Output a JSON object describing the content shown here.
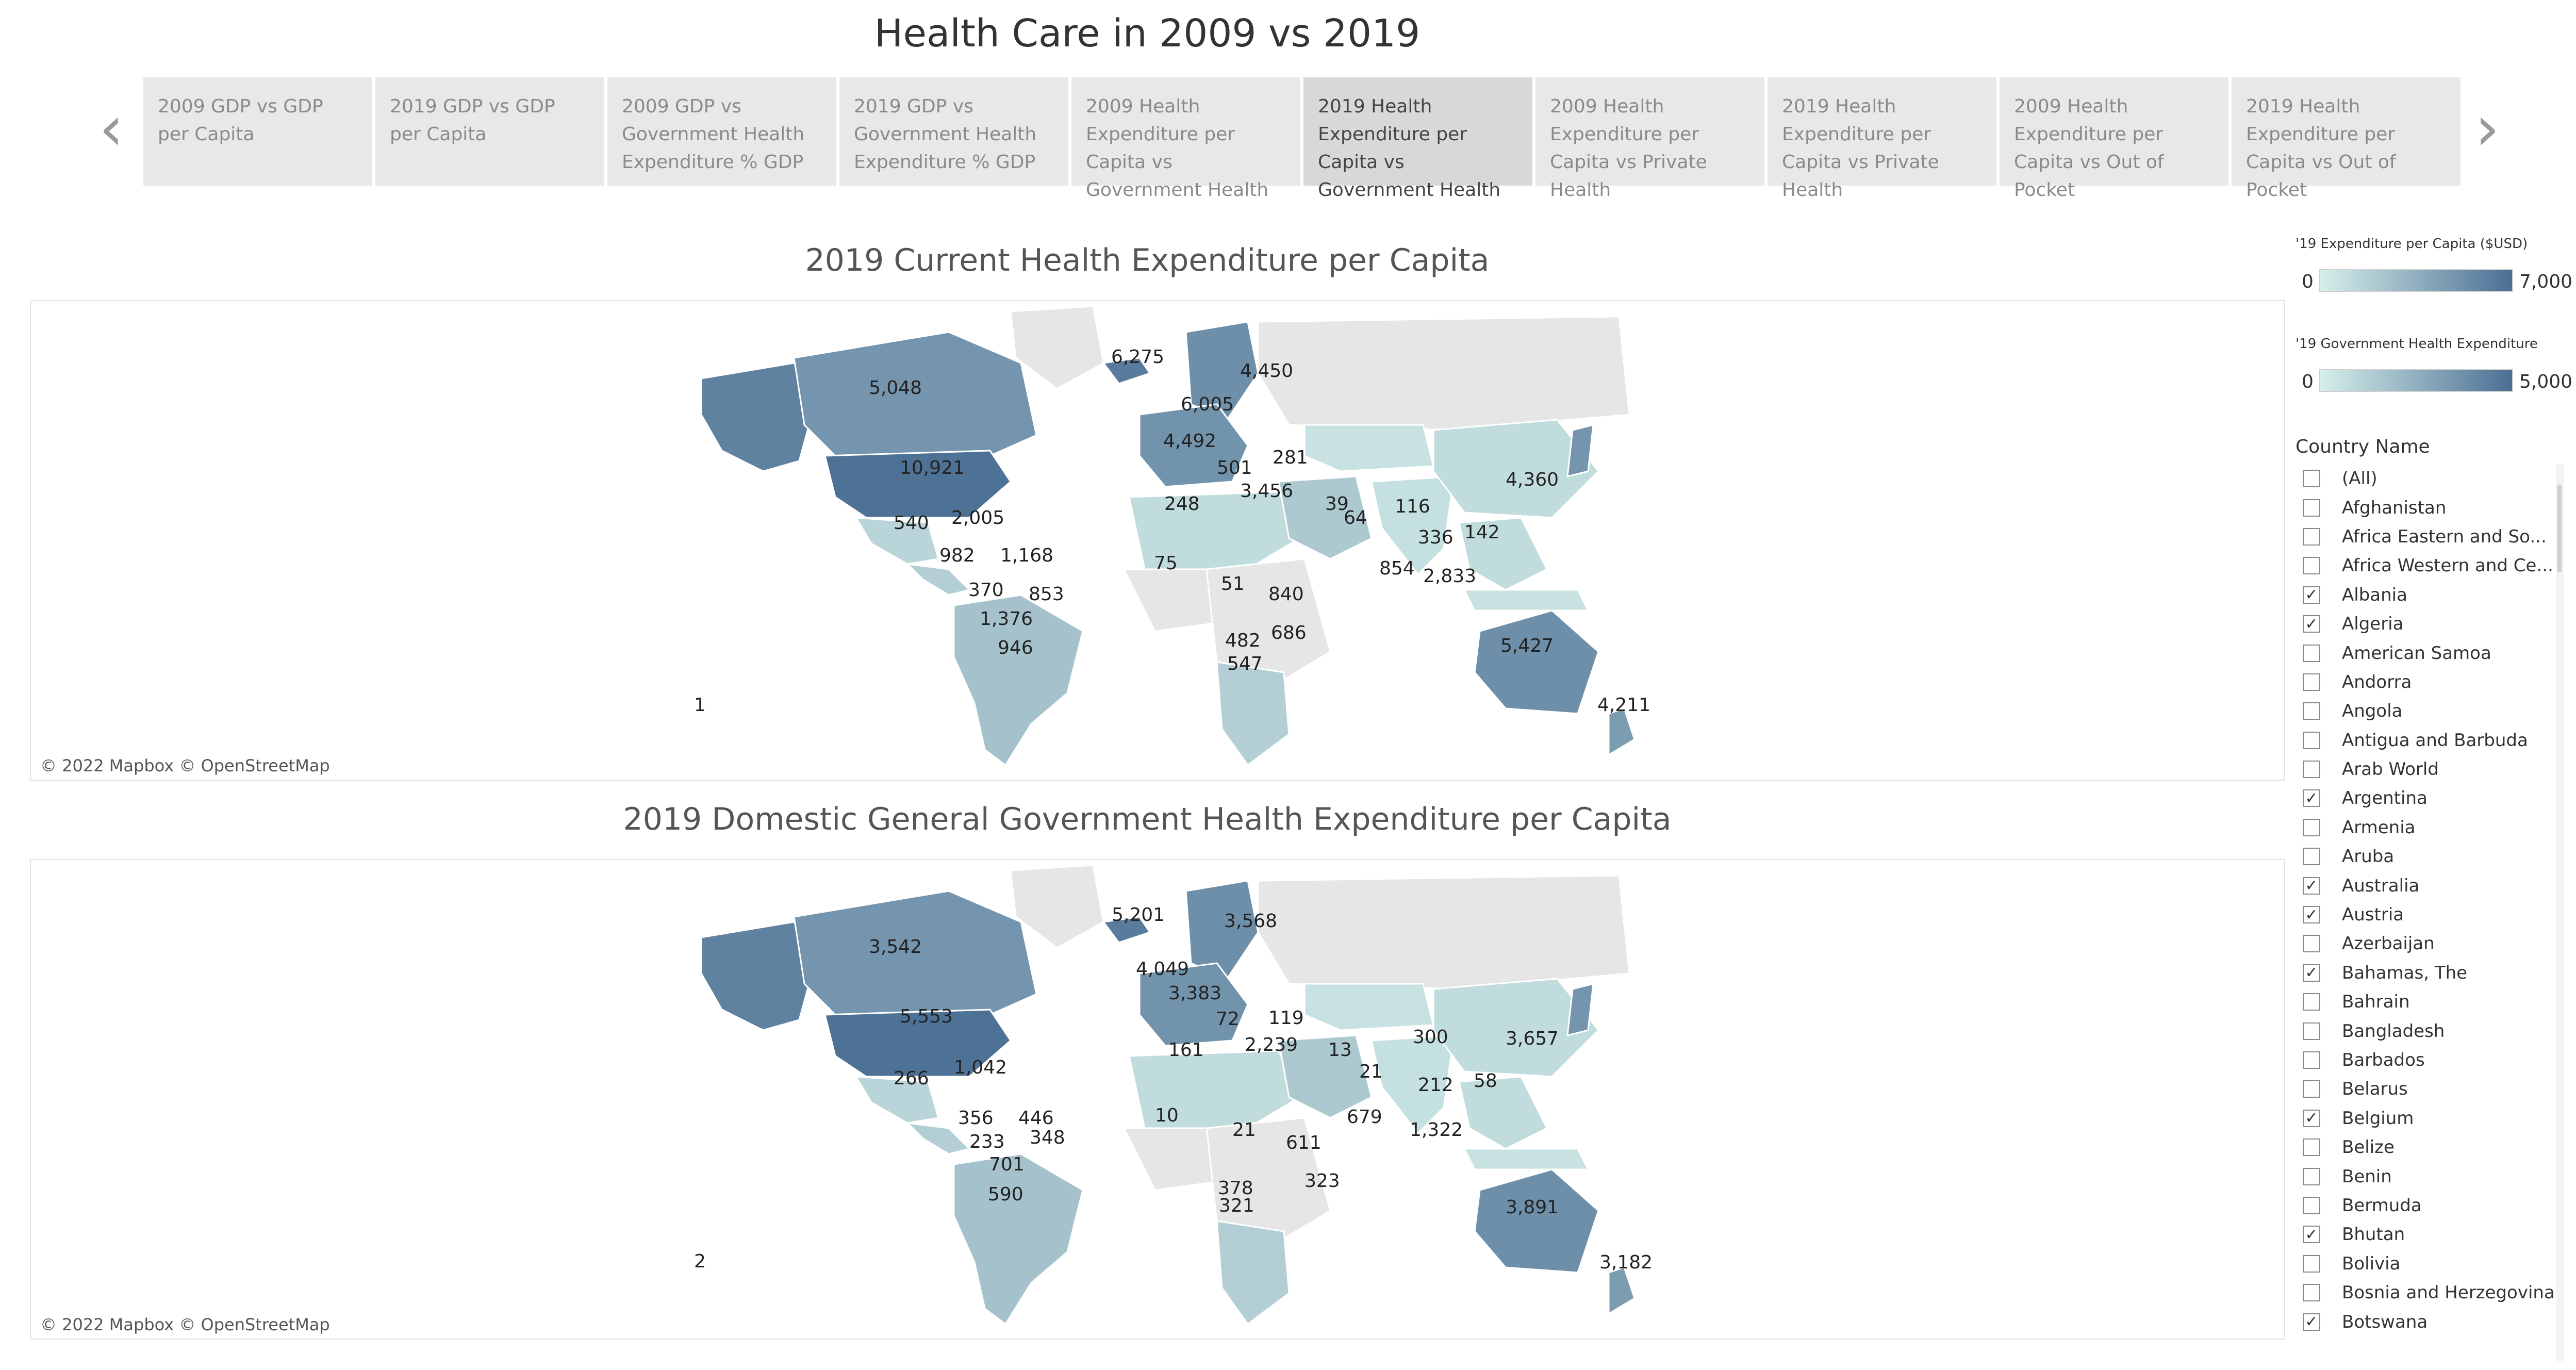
{
  "dashboard": {
    "title": "Health Care in 2009 vs 2019"
  },
  "story_tabs": [
    {
      "label": "2009 GDP vs GDP per Capita",
      "active": false
    },
    {
      "label": "2019 GDP vs GDP per Capita",
      "active": false
    },
    {
      "label": "2009 GDP vs Government Health Expenditure % GDP",
      "active": false
    },
    {
      "label": "2019 GDP vs Government Health Expenditure % GDP",
      "active": false
    },
    {
      "label": "2009 Health Expenditure per Capita vs Government Health",
      "active": false
    },
    {
      "label": "2019 Health Expenditure per Capita vs Government Health",
      "active": true
    },
    {
      "label": "2009 Health Expenditure per Capita vs Private Health",
      "active": false
    },
    {
      "label": "2019 Health Expenditure per Capita vs Private Health",
      "active": false
    },
    {
      "label": "2009 Health Expenditure per Capita vs Out of Pocket",
      "active": false
    },
    {
      "label": "2019 Health Expenditure per Capita vs Out of Pocket",
      "active": false
    }
  ],
  "nav": {
    "prev_icon": "chevron-left-icon",
    "next_icon": "chevron-right-icon"
  },
  "maps": [
    {
      "title": "2019 Current Health Expenditure per Capita",
      "attribution": "© 2022 Mapbox © OpenStreetMap",
      "labels": [
        "5,048",
        "10,921",
        "540",
        "2,005",
        "982",
        "1,168",
        "370",
        "853",
        "1,376",
        "946",
        "6,275",
        "4,450",
        "6,005",
        "4,492",
        "501",
        "281",
        "3,456",
        "248",
        "75",
        "51",
        "840",
        "686",
        "482",
        "547",
        "39",
        "64",
        "116",
        "336",
        "854",
        "2,833",
        "4,360",
        "142",
        "5,427",
        "4,211",
        "1"
      ]
    },
    {
      "title": "2019 Domestic General Government Health Expenditure per Capita",
      "attribution": "© 2022 Mapbox © OpenStreetMap",
      "labels": [
        "3,542",
        "5,553",
        "266",
        "1,042",
        "356",
        "446",
        "233",
        "348",
        "701",
        "590",
        "5,201",
        "3,568",
        "4,049",
        "3,383",
        "72",
        "119",
        "2,239",
        "161",
        "10",
        "21",
        "611",
        "323",
        "378",
        "321",
        "13",
        "21",
        "300",
        "212",
        "679",
        "1,322",
        "3,657",
        "58",
        "3,891",
        "3,182",
        "2"
      ]
    }
  ],
  "legends": [
    {
      "title": "'19 Expenditure per Capita ($USD)",
      "min": "0",
      "max": "7,000"
    },
    {
      "title": "'19 Government Health Expenditure",
      "min": "0",
      "max": "5,000"
    }
  ],
  "colors": {
    "low": "#d6efea",
    "high": "#4b6f94",
    "land_gray": "#e6e6e6"
  },
  "filter": {
    "title": "Country Name",
    "items": [
      {
        "label": "(All)",
        "checked": false
      },
      {
        "label": "Afghanistan",
        "checked": false
      },
      {
        "label": "Africa Eastern and So...",
        "checked": false
      },
      {
        "label": "Africa Western and Ce...",
        "checked": false
      },
      {
        "label": "Albania",
        "checked": true
      },
      {
        "label": "Algeria",
        "checked": true
      },
      {
        "label": "American Samoa",
        "checked": false
      },
      {
        "label": "Andorra",
        "checked": false
      },
      {
        "label": "Angola",
        "checked": false
      },
      {
        "label": "Antigua and Barbuda",
        "checked": false
      },
      {
        "label": "Arab World",
        "checked": false
      },
      {
        "label": "Argentina",
        "checked": true
      },
      {
        "label": "Armenia",
        "checked": false
      },
      {
        "label": "Aruba",
        "checked": false
      },
      {
        "label": "Australia",
        "checked": true
      },
      {
        "label": "Austria",
        "checked": true
      },
      {
        "label": "Azerbaijan",
        "checked": false
      },
      {
        "label": "Bahamas, The",
        "checked": true
      },
      {
        "label": "Bahrain",
        "checked": false
      },
      {
        "label": "Bangladesh",
        "checked": false
      },
      {
        "label": "Barbados",
        "checked": false
      },
      {
        "label": "Belarus",
        "checked": false
      },
      {
        "label": "Belgium",
        "checked": true
      },
      {
        "label": "Belize",
        "checked": false
      },
      {
        "label": "Benin",
        "checked": false
      },
      {
        "label": "Bermuda",
        "checked": false
      },
      {
        "label": "Bhutan",
        "checked": true
      },
      {
        "label": "Bolivia",
        "checked": false
      },
      {
        "label": "Bosnia and Herzegovina",
        "checked": false
      },
      {
        "label": "Botswana",
        "checked": true
      }
    ]
  }
}
